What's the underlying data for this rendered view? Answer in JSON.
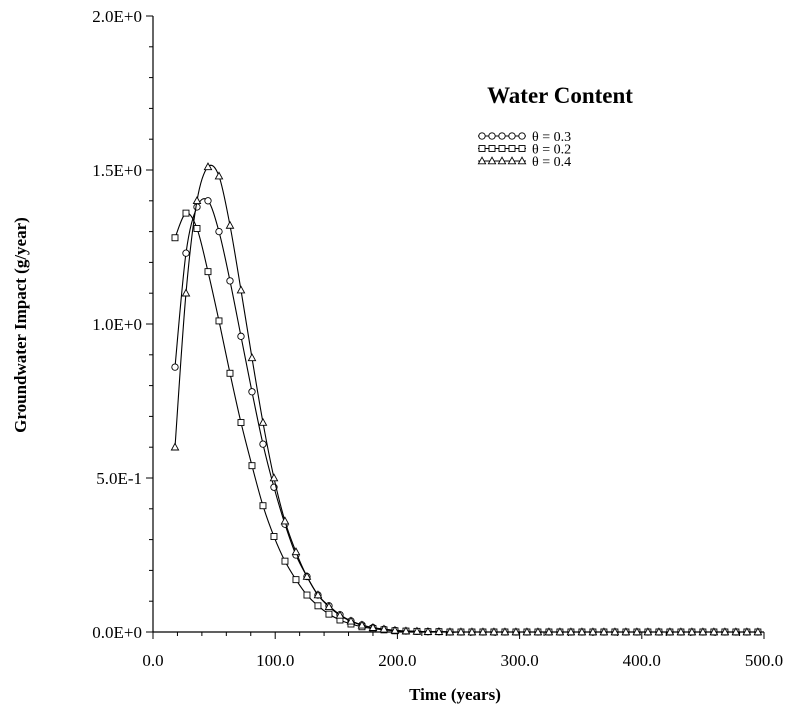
{
  "chart_data": {
    "type": "line",
    "title": "",
    "xlabel": "Time (years)",
    "ylabel": "Groundwater Impact (g/year)",
    "xlim": [
      0,
      500
    ],
    "ylim": [
      0,
      2.0
    ],
    "x_ticks": [
      {
        "value": 0,
        "label": "0.0"
      },
      {
        "value": 100,
        "label": "100.0"
      },
      {
        "value": 200,
        "label": "200.0"
      },
      {
        "value": 300,
        "label": "300.0"
      },
      {
        "value": 400,
        "label": "400.0"
      },
      {
        "value": 500,
        "label": "500.0"
      }
    ],
    "y_ticks": [
      {
        "value": 0,
        "label": "0.0E+0"
      },
      {
        "value": 0.5,
        "label": "5.0E-1"
      },
      {
        "value": 1.0,
        "label": "1.0E+0"
      },
      {
        "value": 1.5,
        "label": "1.5E+0"
      },
      {
        "value": 2.0,
        "label": "2.0E+0"
      }
    ],
    "grid": false,
    "legend": {
      "title": "Water Content",
      "position": "top-right"
    },
    "x": [
      18,
      27,
      36,
      45,
      54,
      63,
      72,
      81,
      90,
      99,
      108,
      117,
      126,
      135,
      144,
      153,
      162,
      171,
      180,
      189,
      198,
      207,
      216,
      225,
      234,
      243,
      252,
      261,
      270,
      279,
      288,
      297,
      306,
      315,
      324,
      333,
      342,
      351,
      360,
      369,
      378,
      387,
      396,
      405,
      414,
      423,
      432,
      441,
      450,
      459,
      468,
      477,
      486,
      495
    ],
    "series": [
      {
        "name": "θ = 0.3",
        "marker": "circle",
        "values": [
          0.86,
          1.23,
          1.38,
          1.4,
          1.3,
          1.14,
          0.96,
          0.78,
          0.61,
          0.47,
          0.35,
          0.25,
          0.18,
          0.12,
          0.085,
          0.056,
          0.036,
          0.023,
          0.014,
          0.009,
          0.005,
          0.003,
          0.002,
          0.001,
          0.001,
          0,
          0,
          0,
          0,
          0,
          0,
          0,
          0,
          0,
          0,
          0,
          0,
          0,
          0,
          0,
          0,
          0,
          0,
          0,
          0,
          0,
          0,
          0,
          0,
          0,
          0,
          0,
          0,
          0
        ]
      },
      {
        "name": "θ = 0.2",
        "marker": "square",
        "values": [
          1.28,
          1.36,
          1.31,
          1.17,
          1.01,
          0.84,
          0.68,
          0.54,
          0.41,
          0.31,
          0.23,
          0.17,
          0.12,
          0.085,
          0.058,
          0.039,
          0.026,
          0.017,
          0.011,
          0.007,
          0.004,
          0.003,
          0.002,
          0.001,
          0.001,
          0,
          0,
          0,
          0,
          0,
          0,
          0,
          0,
          0,
          0,
          0,
          0,
          0,
          0,
          0,
          0,
          0,
          0,
          0,
          0,
          0,
          0,
          0,
          0,
          0,
          0,
          0,
          0,
          0
        ]
      },
      {
        "name": "θ = 0.4",
        "marker": "triangle",
        "values": [
          0.6,
          1.1,
          1.4,
          1.51,
          1.48,
          1.32,
          1.11,
          0.89,
          0.68,
          0.5,
          0.36,
          0.26,
          0.18,
          0.12,
          0.082,
          0.054,
          0.035,
          0.022,
          0.014,
          0.009,
          0.005,
          0.003,
          0.002,
          0.001,
          0.001,
          0,
          0,
          0,
          0,
          0,
          0,
          0,
          0,
          0,
          0,
          0,
          0,
          0,
          0,
          0,
          0,
          0,
          0,
          0,
          0,
          0,
          0,
          0,
          0,
          0,
          0,
          0,
          0,
          0
        ]
      }
    ]
  }
}
